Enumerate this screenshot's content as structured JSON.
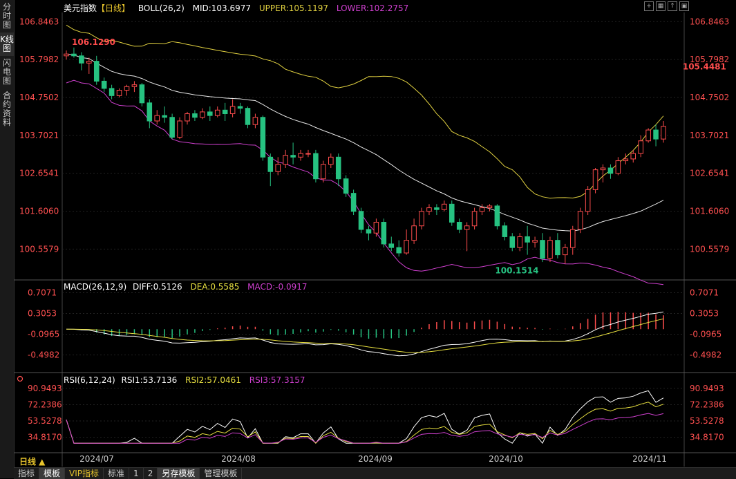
{
  "left_tabs": [
    "分时图",
    "K线图",
    "闪电图",
    "合约资料"
  ],
  "main_header": {
    "name": "美元指数",
    "period": "【日线】",
    "indicator": "BOLL(26,2)",
    "mid": "MID:103.6977",
    "upper": "UPPER:105.1197",
    "lower": "LOWER:102.2757"
  },
  "macd_header": {
    "name": "MACD(26,12,9)",
    "diff": "DIFF:0.5126",
    "dea": "DEA:0.5585",
    "macd": "MACD:-0.0917"
  },
  "rsi_header": {
    "name": "RSI(6,12,24)",
    "rsi1": "RSI1:53.7136",
    "rsi2": "RSI2:57.0461",
    "rsi3": "RSI3:57.3157"
  },
  "period_button": "日线 ▲",
  "bottom_tabs": [
    "指标",
    "模板",
    "VIP指标",
    "标准",
    "1",
    "2",
    "另存模板",
    "管理模板"
  ],
  "colors": {
    "up": "#ff4d4d",
    "down": "#26c281",
    "boll_mid": "#e8e8e8",
    "boll_upper": "#e0d040",
    "boll_lower": "#d040d0",
    "diff": "#ffffff",
    "dea": "#e8e040",
    "rsi1": "#ffffff",
    "rsi2": "#e8e040",
    "rsi3": "#d040d0"
  },
  "chart_data": {
    "type": "candlestick",
    "title": "美元指数【日线】",
    "x_labels": [
      "2024/07",
      "2024/08",
      "2024/09",
      "2024/10",
      "2024/11"
    ],
    "y_ticks": [
      106.8463,
      105.7982,
      104.7502,
      103.7021,
      102.6541,
      101.606,
      100.5579
    ],
    "ylim": [
      99.8,
      107.1
    ],
    "annotations": [
      {
        "label": "106.1290",
        "value": 106.129,
        "index": 0
      },
      {
        "label": "100.1514",
        "value": 100.1514,
        "index": 56
      },
      {
        "label": "105.4481",
        "value": 105.4481,
        "index": 81
      }
    ],
    "candles": [
      [
        105.9,
        105.95,
        105.8,
        106.05
      ],
      [
        105.95,
        105.9,
        105.85,
        106.13
      ],
      [
        105.9,
        105.7,
        105.5,
        106.0
      ],
      [
        105.7,
        105.75,
        105.4,
        105.85
      ],
      [
        105.75,
        105.2,
        105.1,
        105.9
      ],
      [
        105.2,
        105.0,
        104.9,
        105.3
      ],
      [
        105.0,
        104.8,
        104.7,
        105.1
      ],
      [
        104.8,
        104.95,
        104.75,
        105.0
      ],
      [
        104.95,
        105.05,
        104.8,
        105.1
      ],
      [
        105.05,
        105.1,
        104.9,
        105.2
      ],
      [
        105.1,
        104.6,
        104.5,
        105.15
      ],
      [
        104.6,
        104.1,
        103.9,
        104.7
      ],
      [
        104.1,
        104.25,
        104.0,
        104.4
      ],
      [
        104.25,
        104.2,
        104.05,
        104.5
      ],
      [
        104.2,
        103.65,
        103.6,
        104.3
      ],
      [
        103.65,
        104.1,
        103.6,
        104.2
      ],
      [
        104.1,
        104.3,
        104.0,
        104.35
      ],
      [
        104.3,
        104.2,
        104.1,
        104.4
      ],
      [
        104.2,
        104.35,
        104.15,
        104.45
      ],
      [
        104.35,
        104.25,
        104.1,
        104.5
      ],
      [
        104.25,
        104.4,
        104.2,
        104.5
      ],
      [
        104.4,
        104.3,
        104.1,
        104.6
      ],
      [
        104.3,
        104.5,
        104.2,
        104.7
      ],
      [
        104.5,
        104.45,
        104.3,
        104.6
      ],
      [
        104.45,
        104.0,
        103.9,
        104.5
      ],
      [
        104.0,
        104.2,
        103.9,
        104.3
      ],
      [
        104.2,
        103.1,
        103.0,
        104.25
      ],
      [
        103.1,
        102.7,
        102.3,
        103.2
      ],
      [
        102.7,
        102.9,
        102.6,
        103.1
      ],
      [
        102.9,
        103.15,
        102.8,
        103.3
      ],
      [
        103.15,
        103.1,
        102.9,
        103.5
      ],
      [
        103.1,
        103.2,
        103.0,
        103.3
      ],
      [
        103.2,
        103.2,
        103.1,
        103.3
      ],
      [
        103.2,
        102.5,
        102.4,
        103.3
      ],
      [
        102.5,
        102.9,
        102.4,
        103.0
      ],
      [
        102.9,
        103.1,
        102.8,
        103.2
      ],
      [
        103.1,
        102.5,
        102.3,
        103.2
      ],
      [
        102.5,
        102.1,
        102.0,
        102.6
      ],
      [
        102.1,
        101.6,
        101.5,
        102.2
      ],
      [
        101.6,
        101.1,
        101.0,
        101.7
      ],
      [
        101.1,
        101.0,
        100.8,
        101.2
      ],
      [
        101.0,
        101.3,
        100.9,
        101.4
      ],
      [
        101.3,
        100.7,
        100.6,
        101.4
      ],
      [
        100.7,
        100.6,
        100.5,
        100.9
      ],
      [
        100.6,
        100.45,
        100.35,
        100.8
      ],
      [
        100.45,
        100.8,
        100.4,
        101.1
      ],
      [
        100.8,
        101.2,
        100.7,
        101.4
      ],
      [
        101.2,
        101.6,
        101.1,
        101.7
      ],
      [
        101.6,
        101.7,
        101.5,
        101.8
      ],
      [
        101.7,
        101.65,
        101.5,
        101.8
      ],
      [
        101.65,
        101.8,
        101.6,
        101.9
      ],
      [
        101.8,
        101.3,
        101.2,
        101.9
      ],
      [
        101.3,
        101.1,
        101.0,
        101.4
      ],
      [
        101.1,
        101.2,
        100.5,
        101.3
      ],
      [
        101.2,
        101.6,
        101.1,
        101.7
      ],
      [
        101.6,
        101.7,
        101.5,
        101.8
      ],
      [
        101.7,
        101.75,
        101.6,
        101.8
      ],
      [
        101.75,
        101.2,
        101.1,
        101.8
      ],
      [
        101.2,
        100.9,
        100.8,
        101.3
      ],
      [
        100.9,
        100.6,
        100.5,
        101.0
      ],
      [
        100.6,
        100.9,
        100.5,
        101.0
      ],
      [
        100.9,
        100.75,
        100.4,
        101.2
      ],
      [
        100.75,
        100.8,
        100.6,
        100.9
      ],
      [
        100.8,
        100.3,
        100.2,
        101.0
      ],
      [
        100.3,
        100.8,
        100.2,
        100.9
      ],
      [
        100.8,
        100.4,
        100.3,
        101.0
      ],
      [
        100.4,
        100.6,
        100.15,
        100.7
      ],
      [
        100.6,
        101.1,
        100.4,
        101.2
      ],
      [
        101.1,
        101.6,
        101.0,
        101.7
      ],
      [
        101.6,
        102.2,
        101.5,
        102.3
      ],
      [
        102.2,
        102.75,
        102.1,
        102.8
      ],
      [
        102.75,
        102.8,
        102.4,
        102.9
      ],
      [
        102.8,
        102.65,
        102.5,
        102.9
      ],
      [
        102.65,
        103.0,
        102.6,
        103.1
      ],
      [
        103.0,
        103.05,
        102.9,
        103.2
      ],
      [
        103.05,
        103.2,
        102.95,
        103.3
      ],
      [
        103.2,
        103.55,
        103.1,
        103.7
      ],
      [
        103.55,
        103.85,
        103.5,
        103.9
      ],
      [
        103.85,
        103.6,
        103.4,
        104.0
      ],
      [
        103.6,
        103.95,
        103.5,
        104.1
      ]
    ],
    "macd_ticks": [
      0.7071,
      0.3053,
      -0.0965,
      -0.4982
    ],
    "rsi_ticks": [
      90.9493,
      72.2386,
      53.5278,
      34.817
    ]
  }
}
